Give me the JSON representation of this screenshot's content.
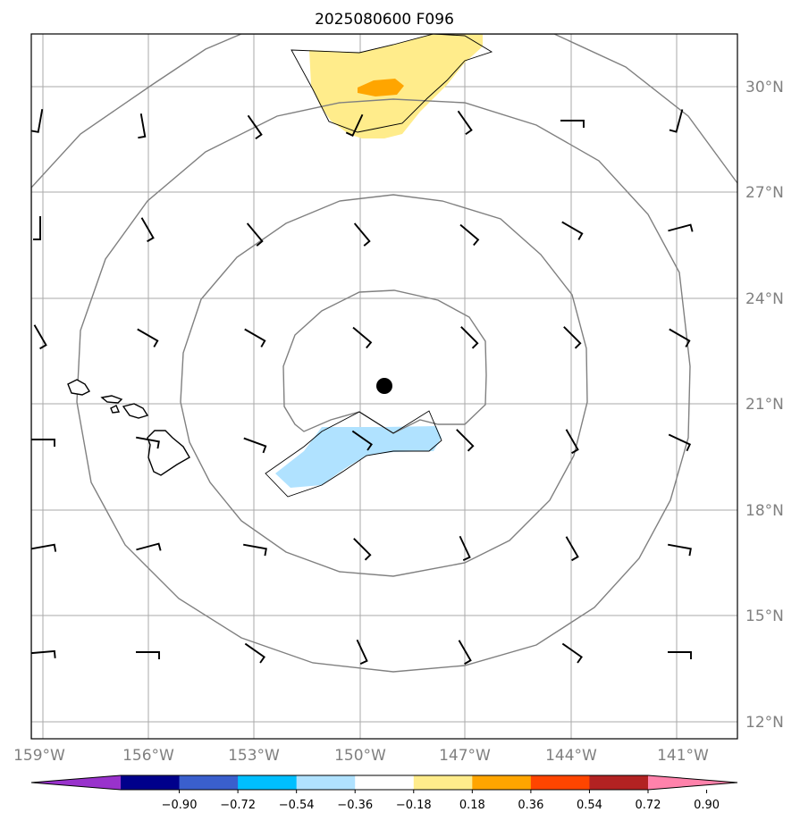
{
  "title": "2025080600 F096",
  "lat_labels": [
    "30°N",
    "27°N",
    "24°N",
    "21°N",
    "18°N",
    "15°N",
    "12°N"
  ],
  "lon_labels": [
    "159°W",
    "156°W",
    "153°W",
    "150°W",
    "147°W",
    "144°W",
    "141°W"
  ],
  "colorbar": {
    "colors": [
      "#9932cc",
      "#00008b",
      "#3a5fcd",
      "#00bfff",
      "#b0e2ff",
      "#ffffff",
      "#ffec8b",
      "#ffa500",
      "#ff4500",
      "#b22222",
      "#ff82ab"
    ],
    "tick_labels": [
      "−0.90",
      "−0.72",
      "−0.54",
      "−0.36",
      "−0.18",
      "0.18",
      "0.36",
      "0.54",
      "0.72",
      "0.90"
    ]
  },
  "storm_center": {
    "lat": 21.5,
    "lon": -149.3
  }
}
